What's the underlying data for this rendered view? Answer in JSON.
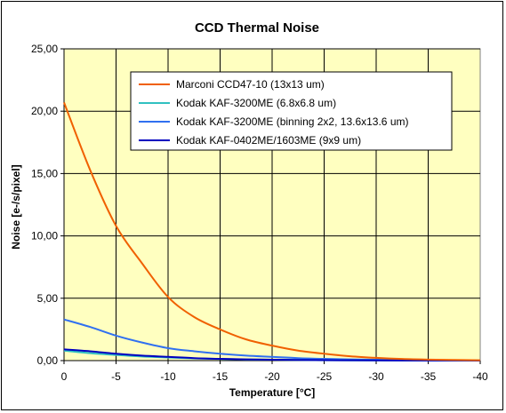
{
  "chart_data": {
    "type": "line",
    "title": "CCD Thermal Noise",
    "xlabel": "Temperature [°C]",
    "ylabel": "Noise [e-/s/pixel]",
    "xlim": [
      0,
      -40
    ],
    "ylim": [
      0,
      25
    ],
    "x_ticks": [
      "0",
      "-5",
      "-10",
      "-15",
      "-20",
      "-25",
      "-30",
      "-35",
      "-40"
    ],
    "y_ticks": [
      "0,00",
      "5,00",
      "10,00",
      "15,00",
      "20,00",
      "25,00"
    ],
    "grid": true,
    "legend_position": "top-right",
    "plot_background": "#ffffc0",
    "x": [
      0,
      -2.5,
      -5,
      -7.5,
      -10,
      -12.5,
      -15,
      -17.5,
      -20,
      -22.5,
      -25,
      -27.5,
      -30,
      -32.5,
      -35,
      -37.5,
      -40
    ],
    "series": [
      {
        "name": "Marconi CCD47-10 (13x13 um)",
        "color": "#f06000",
        "values": [
          20.7,
          15.3,
          10.8,
          7.8,
          5.1,
          3.5,
          2.5,
          1.7,
          1.2,
          0.8,
          0.55,
          0.35,
          0.22,
          0.13,
          0.08,
          0.05,
          0.03
        ]
      },
      {
        "name": "Kodak KAF-3200ME (6.8x6.8 um)",
        "color": "#30c0c0",
        "values": [
          0.8,
          0.6,
          0.45,
          0.33,
          0.25,
          0.18,
          0.13,
          0.09,
          0.07,
          0.05,
          0.03,
          0.02,
          0.015,
          0.01,
          0.008,
          0.006,
          0.004
        ]
      },
      {
        "name": "Kodak KAF-3200ME (binning 2x2, 13.6x13.6 um)",
        "color": "#3070f0",
        "values": [
          3.3,
          2.7,
          2.0,
          1.45,
          1.0,
          0.75,
          0.55,
          0.4,
          0.3,
          0.2,
          0.14,
          0.1,
          0.07,
          0.05,
          0.03,
          0.02,
          0.015
        ]
      },
      {
        "name": "Kodak KAF-0402ME/1603ME (9x9 um)",
        "color": "#0000c0",
        "values": [
          0.9,
          0.75,
          0.55,
          0.4,
          0.3,
          0.2,
          0.14,
          0.1,
          0.07,
          0.05,
          0.035,
          0.025,
          0.018,
          0.012,
          0.008,
          0.006,
          0.004
        ]
      }
    ]
  }
}
